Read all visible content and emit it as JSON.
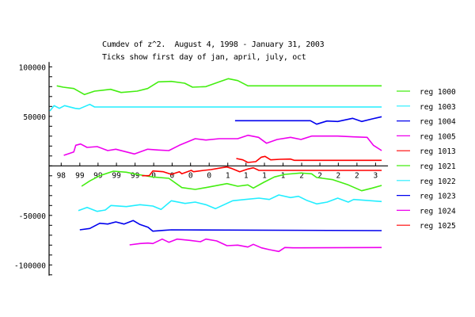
{
  "chart_data": {
    "type": "line",
    "title": "Cumdev of z^2.  August 4, 1998 - January 31, 2003",
    "subtitle": "Ticks show first day of jan, april, july, oct",
    "xlabel": "",
    "ylabel": "",
    "xlim": [
      "1998-08-04",
      "2003-01-31"
    ],
    "ylim": [
      -110000,
      100000
    ],
    "y_tick_labels": [
      {
        "value": 100000,
        "label": "100000"
      },
      {
        "value": 50000,
        "label": "50000"
      },
      {
        "value": -50000,
        "label": "-50000"
      },
      {
        "value": -100000,
        "label": "-100000"
      }
    ],
    "y_minor_tick_step": 10000,
    "x_ticks": [
      {
        "date": "1998-10-01",
        "label": "98"
      },
      {
        "date": "1999-01-01",
        "label": "99"
      },
      {
        "date": "1999-04-01",
        "label": "99"
      },
      {
        "date": "1999-07-01",
        "label": "99"
      },
      {
        "date": "1999-10-01",
        "label": "99"
      },
      {
        "date": "2000-01-01",
        "label": "0"
      },
      {
        "date": "2000-04-01",
        "label": "0"
      },
      {
        "date": "2000-07-01",
        "label": "0"
      },
      {
        "date": "2000-10-01",
        "label": "0"
      },
      {
        "date": "2001-01-01",
        "label": "1"
      },
      {
        "date": "2001-04-01",
        "label": "1"
      },
      {
        "date": "2001-07-01",
        "label": "1"
      },
      {
        "date": "2001-10-01",
        "label": "1"
      },
      {
        "date": "2002-01-01",
        "label": "2"
      },
      {
        "date": "2002-04-01",
        "label": "2"
      },
      {
        "date": "2002-07-01",
        "label": "2"
      },
      {
        "date": "2002-10-01",
        "label": "2"
      },
      {
        "date": "2003-01-01",
        "label": "3"
      }
    ],
    "grid": false,
    "legend_position": "right",
    "series": [
      {
        "name": "reg 1000",
        "color": "#44ee11",
        "points": [
          [
            "1998-09-09",
            80800
          ],
          [
            "1998-10-11",
            79440
          ],
          [
            "1998-12-02",
            78080
          ],
          [
            "1999-01-24",
            72000
          ],
          [
            "1999-03-15",
            75440
          ],
          [
            "1999-06-02",
            77280
          ],
          [
            "1999-07-24",
            74080
          ],
          [
            "1999-10-11",
            75440
          ],
          [
            "1999-12-02",
            78080
          ],
          [
            "2000-01-24",
            84800
          ],
          [
            "2000-03-28",
            85280
          ],
          [
            "2000-06-02",
            83440
          ],
          [
            "2000-07-11",
            79440
          ],
          [
            "2000-09-15",
            80000
          ],
          [
            "2000-11-20",
            84800
          ],
          [
            "2001-01-04",
            88000
          ],
          [
            "2001-02-19",
            86080
          ],
          [
            "2001-04-10",
            80800
          ],
          [
            "2003-01-31",
            80800
          ]
        ]
      },
      {
        "name": "reg 1003",
        "color": "#22eeff",
        "points": [
          [
            "1998-08-06",
            55440
          ],
          [
            "1998-08-27",
            60800
          ],
          [
            "1998-09-22",
            58080
          ],
          [
            "1998-10-18",
            60800
          ],
          [
            "1998-12-09",
            58080
          ],
          [
            "1998-12-29",
            57600
          ],
          [
            "1999-02-19",
            62080
          ],
          [
            "1999-03-15",
            59440
          ],
          [
            "1999-05-13",
            59440
          ],
          [
            "2003-01-31",
            59440
          ]
        ]
      },
      {
        "name": "reg 1004",
        "color": "#0000ee",
        "points": [
          [
            "2001-02-06",
            45600
          ],
          [
            "2002-02-13",
            45600
          ],
          [
            "2002-03-16",
            42080
          ],
          [
            "2002-05-06",
            45280
          ],
          [
            "2002-06-28",
            44800
          ],
          [
            "2002-09-09",
            48000
          ],
          [
            "2002-10-24",
            44800
          ],
          [
            "2002-12-16",
            47440
          ],
          [
            "2003-01-31",
            49600
          ]
        ]
      },
      {
        "name": "reg 1005",
        "color": "#ee00ee",
        "points": [
          [
            "1998-10-14",
            10640
          ],
          [
            "1998-12-02",
            14080
          ],
          [
            "1998-12-12",
            20800
          ],
          [
            "1999-01-05",
            22080
          ],
          [
            "1999-02-06",
            18640
          ],
          [
            "1999-03-28",
            19440
          ],
          [
            "1999-05-19",
            15440
          ],
          [
            "1999-06-28",
            16800
          ],
          [
            "1999-08-19",
            14080
          ],
          [
            "1999-09-28",
            12000
          ],
          [
            "1999-12-02",
            16800
          ],
          [
            "2000-01-24",
            16000
          ],
          [
            "2000-03-16",
            15440
          ],
          [
            "2000-05-07",
            20800
          ],
          [
            "2000-07-24",
            27440
          ],
          [
            "2000-09-15",
            26080
          ],
          [
            "2000-11-20",
            27440
          ],
          [
            "2001-02-19",
            27440
          ],
          [
            "2001-04-10",
            30880
          ],
          [
            "2001-06-02",
            28800
          ],
          [
            "2001-07-11",
            22880
          ],
          [
            "2001-09-02",
            26640
          ],
          [
            "2001-11-07",
            28800
          ],
          [
            "2001-12-29",
            26640
          ],
          [
            "2002-02-19",
            30080
          ],
          [
            "2002-04-23",
            30080
          ],
          [
            "2002-06-28",
            30080
          ],
          [
            "2002-09-15",
            29280
          ],
          [
            "2002-11-20",
            28800
          ],
          [
            "2002-12-21",
            20800
          ],
          [
            "2003-01-31",
            15440
          ]
        ]
      },
      {
        "name": "reg 1013",
        "color": "#ff0000",
        "points": [
          [
            "2001-02-12",
            7440
          ],
          [
            "2001-03-16",
            6080
          ],
          [
            "2001-04-10",
            3440
          ],
          [
            "2001-05-19",
            4240
          ],
          [
            "2001-06-16",
            8800
          ],
          [
            "2001-07-04",
            9600
          ],
          [
            "2001-08-01",
            6080
          ],
          [
            "2001-09-16",
            6640
          ],
          [
            "2001-11-07",
            6880
          ],
          [
            "2001-11-25",
            5600
          ],
          [
            "2003-01-31",
            5600
          ]
        ]
      },
      {
        "name": "reg 1021",
        "color": "#44ee11",
        "points": [
          [
            "1999-01-10",
            -20560
          ],
          [
            "1999-02-19",
            -15200
          ],
          [
            "1999-04-10",
            -9920
          ],
          [
            "1999-06-16",
            -5360
          ],
          [
            "1999-08-19",
            -6400
          ],
          [
            "1999-10-10",
            -8560
          ],
          [
            "1999-12-28",
            -11200
          ],
          [
            "2000-03-16",
            -12560
          ],
          [
            "2000-05-19",
            -21920
          ],
          [
            "2000-07-24",
            -23760
          ],
          [
            "2000-09-15",
            -21920
          ],
          [
            "2000-12-28",
            -17920
          ],
          [
            "2001-02-19",
            -20560
          ],
          [
            "2001-04-10",
            -19200
          ],
          [
            "2001-05-07",
            -22400
          ],
          [
            "2001-06-28",
            -16560
          ],
          [
            "2001-08-19",
            -11200
          ],
          [
            "2001-10-10",
            -8560
          ],
          [
            "2001-12-28",
            -7200
          ],
          [
            "2002-02-19",
            -8000
          ],
          [
            "2002-03-16",
            -11760
          ],
          [
            "2002-06-04",
            -13920
          ],
          [
            "2002-08-19",
            -19200
          ],
          [
            "2002-10-24",
            -25120
          ],
          [
            "2002-12-16",
            -22400
          ],
          [
            "2003-01-31",
            -19760
          ]
        ]
      },
      {
        "name": "reg 1022",
        "color": "#22eeff",
        "points": [
          [
            "1998-12-25",
            -45120
          ],
          [
            "1999-02-06",
            -41920
          ],
          [
            "1999-03-28",
            -45920
          ],
          [
            "1999-05-07",
            -44560
          ],
          [
            "1999-06-04",
            -40000
          ],
          [
            "1999-08-19",
            -41120
          ],
          [
            "1999-10-25",
            -39200
          ],
          [
            "1999-12-28",
            -40560
          ],
          [
            "2000-02-06",
            -44000
          ],
          [
            "2000-03-28",
            -35200
          ],
          [
            "2000-06-04",
            -37920
          ],
          [
            "2000-07-24",
            -36560
          ],
          [
            "2000-09-15",
            -39200
          ],
          [
            "2000-11-01",
            -43200
          ],
          [
            "2001-01-25",
            -35200
          ],
          [
            "2001-03-28",
            -33920
          ],
          [
            "2001-06-04",
            -32560
          ],
          [
            "2001-07-25",
            -33920
          ],
          [
            "2001-09-10",
            -29360
          ],
          [
            "2001-11-07",
            -32000
          ],
          [
            "2001-12-16",
            -30720
          ],
          [
            "2002-01-25",
            -34720
          ],
          [
            "2002-03-16",
            -38400
          ],
          [
            "2002-05-07",
            -36560
          ],
          [
            "2002-06-28",
            -32560
          ],
          [
            "2002-08-19",
            -36560
          ],
          [
            "2002-09-15",
            -33920
          ],
          [
            "2003-01-31",
            -36000
          ]
        ]
      },
      {
        "name": "reg 1023",
        "color": "#0000ee",
        "points": [
          [
            "1999-01-01",
            -64560
          ],
          [
            "1999-02-19",
            -63200
          ],
          [
            "1999-04-10",
            -57920
          ],
          [
            "1999-05-19",
            -58720
          ],
          [
            "1999-06-28",
            -56560
          ],
          [
            "1999-08-07",
            -58720
          ],
          [
            "1999-09-22",
            -55200
          ],
          [
            "1999-10-25",
            -59200
          ],
          [
            "1999-12-04",
            -61920
          ],
          [
            "1999-12-28",
            -65920
          ],
          [
            "2000-02-18",
            -65120
          ],
          [
            "2000-03-28",
            -64560
          ],
          [
            "2003-01-31",
            -65360
          ]
        ]
      },
      {
        "name": "reg 1024",
        "color": "#ee00ee",
        "points": [
          [
            "1999-09-04",
            -79760
          ],
          [
            "1999-10-25",
            -78400
          ],
          [
            "1999-12-04",
            -77920
          ],
          [
            "1999-12-28",
            -78400
          ],
          [
            "2000-02-12",
            -73920
          ],
          [
            "2000-03-16",
            -77120
          ],
          [
            "2000-04-25",
            -73920
          ],
          [
            "2000-06-28",
            -75200
          ],
          [
            "2000-08-19",
            -76560
          ],
          [
            "2000-09-15",
            -73920
          ],
          [
            "2000-11-07",
            -75760
          ],
          [
            "2000-12-28",
            -80560
          ],
          [
            "2001-02-19",
            -80000
          ],
          [
            "2001-04-10",
            -81920
          ],
          [
            "2001-05-07",
            -79200
          ],
          [
            "2001-06-16",
            -82720
          ],
          [
            "2001-07-25",
            -84560
          ],
          [
            "2001-09-10",
            -86400
          ],
          [
            "2001-10-10",
            -82400
          ],
          [
            "2001-11-19",
            -82720
          ],
          [
            "2003-01-31",
            -82400
          ]
        ]
      },
      {
        "name": "reg 1025",
        "color": "#ff0000",
        "points": [
          [
            "1999-11-04",
            -9920
          ],
          [
            "1999-12-10",
            -9920
          ],
          [
            "1999-12-28",
            -5120
          ],
          [
            "2000-02-18",
            -5920
          ],
          [
            "2000-03-28",
            -8560
          ],
          [
            "2000-05-07",
            -5920
          ],
          [
            "2000-05-19",
            -8000
          ],
          [
            "2000-07-04",
            -4560
          ],
          [
            "2000-07-16",
            -5920
          ],
          [
            "2000-09-04",
            -4560
          ],
          [
            "2000-10-10",
            -3760
          ],
          [
            "2000-12-01",
            -1920
          ],
          [
            "2000-12-28",
            -1120
          ],
          [
            "2001-01-22",
            -2720
          ],
          [
            "2001-03-01",
            -5920
          ],
          [
            "2001-04-10",
            -3200
          ],
          [
            "2001-05-07",
            -1920
          ],
          [
            "2001-06-04",
            -4560
          ],
          [
            "2001-06-28",
            -4560
          ],
          [
            "2003-01-31",
            -4560
          ]
        ]
      }
    ]
  }
}
